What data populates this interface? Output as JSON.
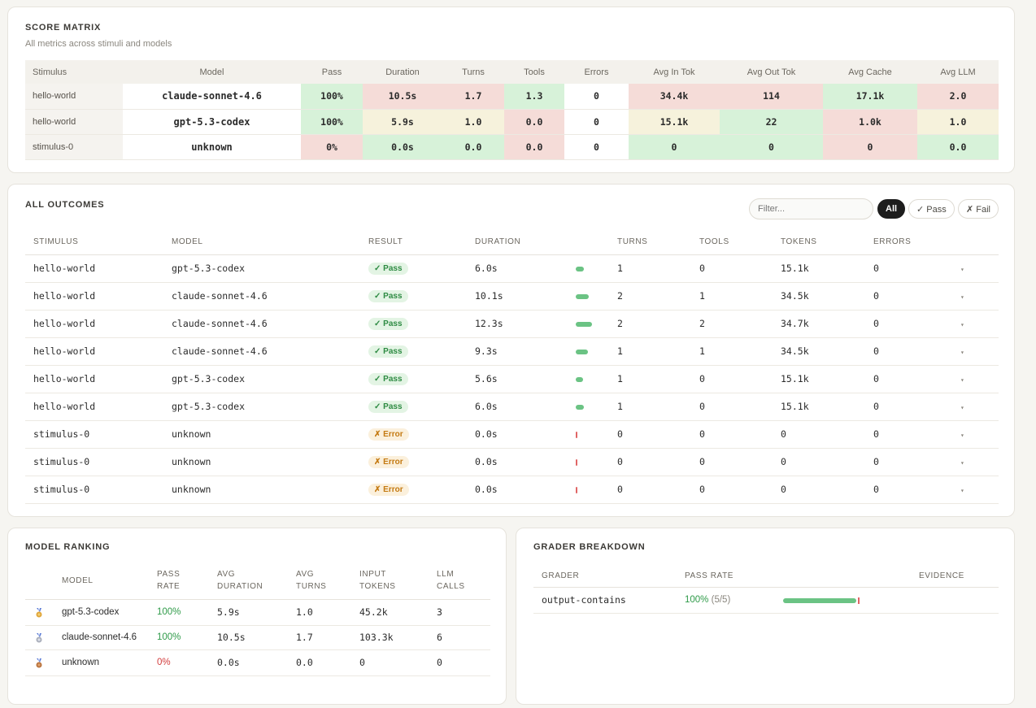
{
  "score_matrix": {
    "title": "SCORE MATRIX",
    "subtitle": "All metrics across stimuli and models",
    "headers": [
      "Stimulus",
      "Model",
      "Pass",
      "Duration",
      "Turns",
      "Tools",
      "Errors",
      "Avg In Tok",
      "Avg Out Tok",
      "Avg Cache",
      "Avg LLM"
    ],
    "rows": [
      {
        "stimulus": "hello-world",
        "model": "claude-sonnet-4.6",
        "pass": "100%",
        "duration": "10.5s",
        "turns": "1.7",
        "tools": "1.3",
        "errors": "0",
        "avg_in_tok": "34.4k",
        "avg_out_tok": "114",
        "avg_cache": "17.1k",
        "avg_llm": "2.0"
      },
      {
        "stimulus": "hello-world",
        "model": "gpt-5.3-codex",
        "pass": "100%",
        "duration": "5.9s",
        "turns": "1.0",
        "tools": "0.0",
        "errors": "0",
        "avg_in_tok": "15.1k",
        "avg_out_tok": "22",
        "avg_cache": "1.0k",
        "avg_llm": "1.0"
      },
      {
        "stimulus": "stimulus-0",
        "model": "unknown",
        "pass": "0%",
        "duration": "0.0s",
        "turns": "0.0",
        "tools": "0.0",
        "errors": "0",
        "avg_in_tok": "0",
        "avg_out_tok": "0",
        "avg_cache": "0",
        "avg_llm": "0.0"
      }
    ],
    "colors": {
      "good": "#d7f2d9",
      "bad": "#f5dcd8",
      "mid": "#f6f2dc"
    }
  },
  "outcomes": {
    "title": "ALL OUTCOMES",
    "filter_placeholder": "Filter...",
    "chips": {
      "all": "All",
      "pass": "✓ Pass",
      "fail": "✗ Fail"
    },
    "headers": {
      "stimulus": "STIMULUS",
      "model": "MODEL",
      "result": "RESULT",
      "duration": "DURATION",
      "turns": "TURNS",
      "tools": "TOOLS",
      "tokens": "TOKENS",
      "errors": "ERRORS"
    },
    "rows": [
      {
        "stimulus": "hello-world",
        "model": "gpt-5.3-codex",
        "result": "✓ Pass",
        "duration": "6.0s",
        "duration_fraction": 0.49,
        "turns": "1",
        "tools": "0",
        "tokens": "15.1k",
        "errors": "0"
      },
      {
        "stimulus": "hello-world",
        "model": "claude-sonnet-4.6",
        "result": "✓ Pass",
        "duration": "10.1s",
        "duration_fraction": 0.82,
        "turns": "2",
        "tools": "1",
        "tokens": "34.5k",
        "errors": "0"
      },
      {
        "stimulus": "hello-world",
        "model": "claude-sonnet-4.6",
        "result": "✓ Pass",
        "duration": "12.3s",
        "duration_fraction": 1.0,
        "turns": "2",
        "tools": "2",
        "tokens": "34.7k",
        "errors": "0"
      },
      {
        "stimulus": "hello-world",
        "model": "claude-sonnet-4.6",
        "result": "✓ Pass",
        "duration": "9.3s",
        "duration_fraction": 0.76,
        "turns": "1",
        "tools": "1",
        "tokens": "34.5k",
        "errors": "0"
      },
      {
        "stimulus": "hello-world",
        "model": "gpt-5.3-codex",
        "result": "✓ Pass",
        "duration": "5.6s",
        "duration_fraction": 0.46,
        "turns": "1",
        "tools": "0",
        "tokens": "15.1k",
        "errors": "0"
      },
      {
        "stimulus": "hello-world",
        "model": "gpt-5.3-codex",
        "result": "✓ Pass",
        "duration": "6.0s",
        "duration_fraction": 0.49,
        "turns": "1",
        "tools": "0",
        "tokens": "15.1k",
        "errors": "0"
      },
      {
        "stimulus": "stimulus-0",
        "model": "unknown",
        "result": "✗ Error",
        "duration": "0.0s",
        "duration_fraction": 0,
        "turns": "0",
        "tools": "0",
        "tokens": "0",
        "errors": "0"
      },
      {
        "stimulus": "stimulus-0",
        "model": "unknown",
        "result": "✗ Error",
        "duration": "0.0s",
        "duration_fraction": 0,
        "turns": "0",
        "tools": "0",
        "tokens": "0",
        "errors": "0"
      },
      {
        "stimulus": "stimulus-0",
        "model": "unknown",
        "result": "✗ Error",
        "duration": "0.0s",
        "duration_fraction": 0,
        "turns": "0",
        "tools": "0",
        "tokens": "0",
        "errors": "0"
      }
    ],
    "expand_icon": "chevron-down-icon"
  },
  "ranking": {
    "title": "MODEL RANKING",
    "headers": {
      "model": "MODEL",
      "pass_rate_1": "PASS",
      "pass_rate_2": "RATE",
      "avg_duration_1": "AVG",
      "avg_duration_2": "DURATION",
      "avg_turns_1": "AVG",
      "avg_turns_2": "TURNS",
      "input_tokens_1": "INPUT",
      "input_tokens_2": "TOKENS",
      "llm_calls_1": "LLM",
      "llm_calls_2": "CALLS"
    },
    "rows": [
      {
        "medal": "gold-medal-icon",
        "model": "gpt-5.3-codex",
        "pass_rate": "100%",
        "avg_duration": "5.9s",
        "avg_turns": "1.0",
        "input_tokens": "45.2k",
        "llm_calls": "3"
      },
      {
        "medal": "silver-medal-icon",
        "model": "claude-sonnet-4.6",
        "pass_rate": "100%",
        "avg_duration": "10.5s",
        "avg_turns": "1.7",
        "input_tokens": "103.3k",
        "llm_calls": "6"
      },
      {
        "medal": "bronze-medal-icon",
        "model": "unknown",
        "pass_rate": "0%",
        "avg_duration": "0.0s",
        "avg_turns": "0.0",
        "input_tokens": "0",
        "llm_calls": "0"
      }
    ]
  },
  "grader": {
    "title": "GRADER BREAKDOWN",
    "headers": {
      "grader": "GRADER",
      "pass_rate": "PASS RATE",
      "evidence": "EVIDENCE"
    },
    "rows": [
      {
        "grader": "output-contains",
        "pass_rate": "100%",
        "pass_count": "(5/5)",
        "pass_fraction": 1.0
      }
    ]
  }
}
